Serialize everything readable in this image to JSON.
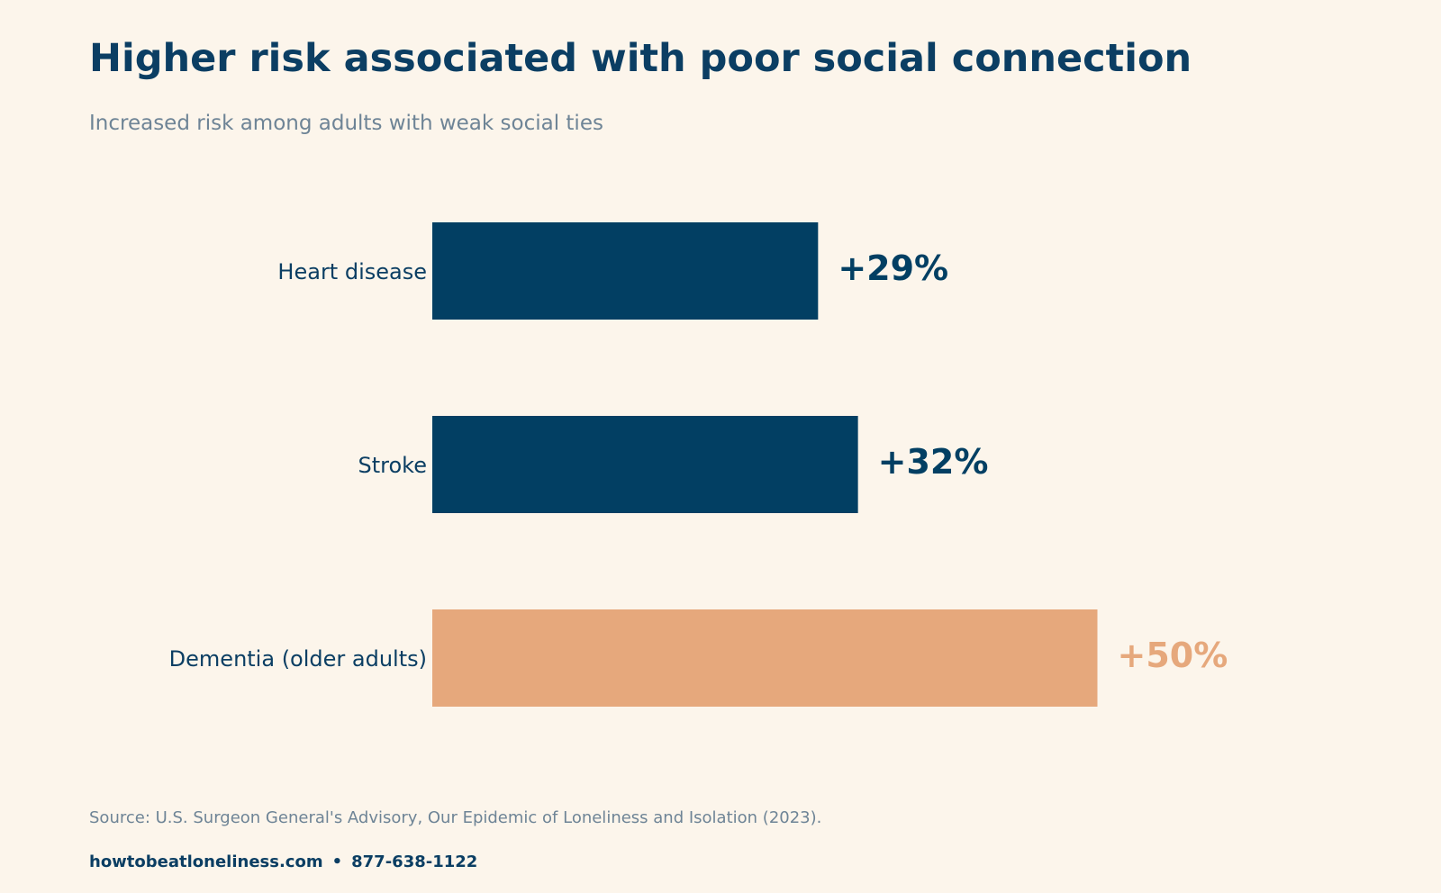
{
  "header": {
    "title": "Higher risk associated with poor social connection",
    "subtitle": "Increased risk among adults with weak social ties"
  },
  "chart_data": {
    "type": "bar",
    "orientation": "horizontal",
    "title": "Higher risk associated with poor social connection",
    "subtitle": "Increased risk among adults with weak social ties",
    "categories": [
      "Heart disease",
      "Stroke",
      "Dementia (older adults)"
    ],
    "values": [
      29,
      32,
      50
    ],
    "value_labels": [
      "+29%",
      "+32%",
      "+50%"
    ],
    "colors": [
      "#023f63",
      "#023f63",
      "#e6a87c"
    ],
    "xlim": [
      0,
      50
    ],
    "grid": false,
    "axes_visible": false
  },
  "colors": {
    "background": "#fcf5eb",
    "primary": "#023f63",
    "highlight": "#e6a87c",
    "muted": "#6e8496"
  },
  "footer": {
    "source": "Source: U.S. Surgeon General's Advisory, Our Epidemic of Loneliness and Isolation (2023).",
    "website": "howtobeatloneliness.com",
    "separator": "•",
    "phone": "877-638-1122"
  }
}
